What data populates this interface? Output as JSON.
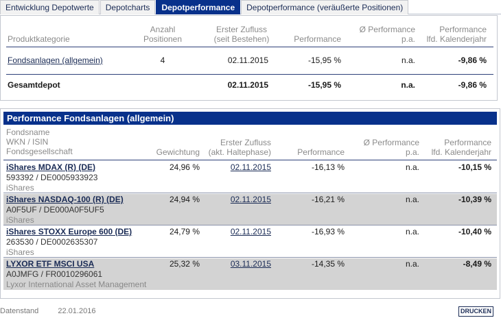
{
  "tabs": [
    {
      "label": "Entwicklung Depotwerte"
    },
    {
      "label": "Depotcharts"
    },
    {
      "label": "Depotperformance"
    },
    {
      "label": "Depotperformance (veräußerte Positionen)"
    }
  ],
  "summary": {
    "headers": {
      "category": "Produktkategorie",
      "count_line1": "Anzahl",
      "count_line2": "Positionen",
      "inflow_line1": "Erster Zufluss",
      "inflow_line2": "(seit Bestehen)",
      "performance": "Performance",
      "avg_line1": "Ø Performance",
      "avg_line2": "p.a.",
      "year_line1": "Performance",
      "year_line2": "lfd. Kalenderjahr"
    },
    "row": {
      "category": "Fondsanlagen (allgemein)",
      "count": "4",
      "inflow": "02.11.2015",
      "performance": "-15,95 %",
      "avg": "n.a.",
      "year": "-9,86 %"
    },
    "total": {
      "label": "Gesamtdepot",
      "inflow": "02.11.2015",
      "performance": "-15,95 %",
      "avg": "n.a.",
      "year": "-9,86 %"
    }
  },
  "detail": {
    "title": "Performance Fondsanlagen (allgemein)",
    "headers": {
      "name_line1": "Fondsname",
      "name_line2": "WKN / ISIN",
      "name_line3": "Fondsgesellschaft",
      "weight": "Gewichtung",
      "inflow_line1": "Erster Zufluss",
      "inflow_line2": "(akt. Haltephase)",
      "performance": "Performance",
      "avg_line1": "Ø Performance",
      "avg_line2": "p.a.",
      "year_line1": "Performance",
      "year_line2": "lfd. Kalenderjahr"
    },
    "rows": [
      {
        "name": "iShares MDAX (R) (DE)",
        "ids": "593392 / DE0005933923",
        "issuer": "iShares",
        "weight": "24,96 %",
        "inflow": "02.11.2015",
        "performance": "-16,13 %",
        "avg": "n.a.",
        "year": "-10,15 %"
      },
      {
        "name": "iShares NASDAQ-100 (R) (DE)",
        "ids": "A0F5UF / DE000A0F5UF5",
        "issuer": "iShares",
        "weight": "24,94 %",
        "inflow": "02.11.2015",
        "performance": "-16,21 %",
        "avg": "n.a.",
        "year": "-10,39 %"
      },
      {
        "name": "iShares STOXX Europe 600 (DE)",
        "ids": "263530 / DE0002635307",
        "issuer": "iShares",
        "weight": "24,79 %",
        "inflow": "02.11.2015",
        "performance": "-16,93 %",
        "avg": "n.a.",
        "year": "-10,40 %"
      },
      {
        "name": "LYXOR ETF MSCI USA",
        "ids": "A0JMFG / FR0010296061",
        "issuer": "Lyxor International Asset Management",
        "weight": "25,32 %",
        "inflow": "03.11.2015",
        "performance": "-14,35 %",
        "avg": "n.a.",
        "year": "-8,49 %"
      }
    ]
  },
  "footer": {
    "label": "Datenstand",
    "date": "22.01.2016",
    "print_label": "DRUCKEN"
  }
}
